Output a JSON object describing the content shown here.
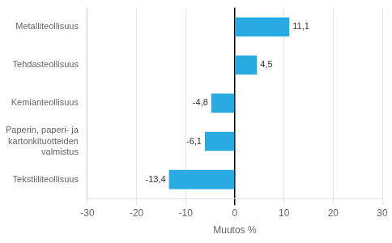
{
  "chart_data": {
    "type": "bar",
    "orientation": "horizontal",
    "categories": [
      "Tekstiiliteollisuus",
      "Paperin, paperi- ja kartonkituotteiden valmistus",
      "Kemianteollisuus",
      "Tehdasteollisuus",
      "Metalliteollisuus"
    ],
    "values": [
      -13.4,
      -6.1,
      -4.8,
      4.5,
      11.1
    ],
    "value_labels": [
      "-13,4",
      "-6,1",
      "-4,8",
      "4,5",
      "11,1"
    ],
    "data_labels": true,
    "color": "#29abe2",
    "xlabel": "Muutos %",
    "xlim": [
      -30,
      30
    ],
    "xticks": [
      -30,
      -20,
      -10,
      0,
      10,
      20,
      30
    ],
    "grid": true
  }
}
